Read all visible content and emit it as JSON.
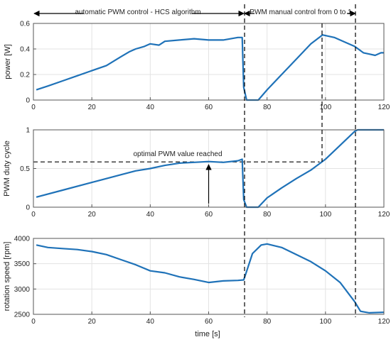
{
  "figure": {
    "annotations": {
      "auto_label": "automatic PWM control - HCS algorithm",
      "manual_label": "PWM manual control from 0 to 1",
      "optimal_label": "optimal PWM value reached"
    },
    "xlabel": "time [s]",
    "line_color": "#1f72b8"
  },
  "chart_data": [
    {
      "type": "line",
      "title": "",
      "xlabel": "",
      "ylabel": "power [W]",
      "xlim": [
        0,
        120
      ],
      "ylim": [
        0,
        0.6
      ],
      "xticks": [
        0,
        20,
        40,
        60,
        80,
        100,
        120
      ],
      "yticks": [
        0,
        0.2,
        0.4,
        0.6
      ],
      "ytick_labels": [
        "0",
        "0.2",
        "0.4",
        "0.6"
      ],
      "grid": true,
      "series": [
        {
          "x": [
            1,
            5,
            10,
            15,
            20,
            25,
            30,
            33,
            35,
            38,
            40,
            43,
            45,
            50,
            55,
            60,
            65,
            70,
            71.5,
            72,
            73,
            75,
            77,
            80,
            85,
            90,
            95,
            99,
            103,
            107,
            110,
            113,
            115,
            117,
            119,
            120
          ],
          "y": [
            0.08,
            0.11,
            0.15,
            0.19,
            0.23,
            0.27,
            0.34,
            0.38,
            0.4,
            0.42,
            0.44,
            0.43,
            0.46,
            0.47,
            0.48,
            0.47,
            0.47,
            0.49,
            0.49,
            0.1,
            0.0,
            0.0,
            0.0,
            0.08,
            0.2,
            0.32,
            0.44,
            0.51,
            0.49,
            0.45,
            0.42,
            0.37,
            0.36,
            0.35,
            0.37,
            0.37
          ]
        }
      ]
    },
    {
      "type": "line",
      "title": "",
      "xlabel": "",
      "ylabel": "PWM duty cycle",
      "xlim": [
        0,
        120
      ],
      "ylim": [
        0,
        1
      ],
      "xticks": [
        0,
        20,
        40,
        60,
        80,
        100,
        120
      ],
      "yticks": [
        0,
        0.5,
        1
      ],
      "ytick_labels": [
        "0",
        "0.5",
        "1"
      ],
      "grid": true,
      "series": [
        {
          "x": [
            1,
            10,
            20,
            30,
            35,
            40,
            45,
            50,
            55,
            60,
            65,
            70,
            71.5,
            72,
            73,
            75,
            77,
            80,
            85,
            90,
            95,
            100,
            105,
            110,
            111,
            115,
            120
          ],
          "y": [
            0.13,
            0.22,
            0.32,
            0.42,
            0.47,
            0.5,
            0.54,
            0.57,
            0.58,
            0.59,
            0.58,
            0.6,
            0.62,
            0.1,
            0.0,
            0.0,
            0.0,
            0.12,
            0.25,
            0.37,
            0.48,
            0.62,
            0.8,
            0.98,
            1.0,
            1.0,
            1.0
          ]
        }
      ],
      "reference_line": {
        "y": 0.585
      },
      "annotation_arrow_x": 60
    },
    {
      "type": "line",
      "title": "",
      "xlabel": "time [s]",
      "ylabel": "rotation speed [rpm]",
      "xlim": [
        0,
        120
      ],
      "ylim": [
        2500,
        4000
      ],
      "xticks": [
        0,
        20,
        40,
        60,
        80,
        100,
        120
      ],
      "yticks": [
        2500,
        3000,
        3500,
        4000
      ],
      "ytick_labels": [
        "2500",
        "3000",
        "3500",
        "4000"
      ],
      "grid": true,
      "series": [
        {
          "x": [
            1,
            5,
            10,
            15,
            20,
            25,
            30,
            35,
            40,
            45,
            50,
            55,
            60,
            65,
            70,
            72,
            73,
            75,
            78,
            80,
            85,
            90,
            95,
            100,
            105,
            110,
            112,
            115,
            120
          ],
          "y": [
            3870,
            3820,
            3800,
            3780,
            3740,
            3680,
            3580,
            3480,
            3360,
            3320,
            3240,
            3190,
            3130,
            3160,
            3170,
            3180,
            3350,
            3700,
            3870,
            3890,
            3820,
            3680,
            3540,
            3360,
            3130,
            2750,
            2560,
            2530,
            2540
          ]
        }
      ]
    }
  ]
}
